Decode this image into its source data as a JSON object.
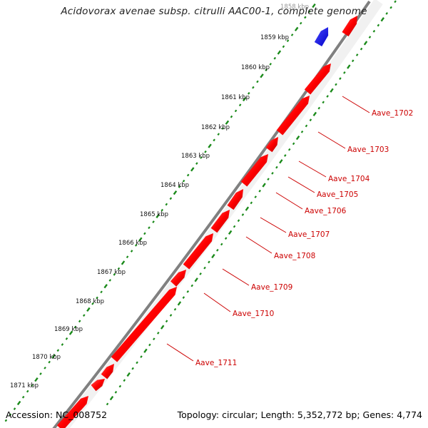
{
  "title": "Acidovorax avenae subsp. citrulli AAC00-1, complete genome",
  "footer": {
    "accession": "Accession: NC_008752",
    "summary": "Topology: circular; Length: 5,352,772 bp; Genes: 4,774"
  },
  "colors": {
    "forward_gene": "#ff0000",
    "reverse_gene": "#0000ff",
    "backbone": "#808080",
    "tick": "#1a8a1a",
    "gene_label": "#cc0000"
  },
  "ruler": {
    "unit": "kbp",
    "labels": [
      "1858 kbp",
      "1859 kbp",
      "1860 kbp",
      "1861 kbp",
      "1862 kbp",
      "1863 kbp",
      "1864 kbp",
      "1865 kbp",
      "1866 kbp",
      "1867 kbp",
      "1868 kbp",
      "1869 kbp",
      "1870 kbp",
      "1871 kbp"
    ]
  },
  "genes": [
    {
      "name": "Aave_1702",
      "strand": "forward"
    },
    {
      "name": "Aave_1703",
      "strand": "forward"
    },
    {
      "name": "Aave_1704",
      "strand": "forward"
    },
    {
      "name": "Aave_1705",
      "strand": "forward"
    },
    {
      "name": "Aave_1706",
      "strand": "forward"
    },
    {
      "name": "Aave_1707",
      "strand": "forward"
    },
    {
      "name": "Aave_1708",
      "strand": "forward"
    },
    {
      "name": "Aave_1709",
      "strand": "forward"
    },
    {
      "name": "Aave_1710",
      "strand": "forward"
    },
    {
      "name": "Aave_1711",
      "strand": "forward"
    }
  ]
}
